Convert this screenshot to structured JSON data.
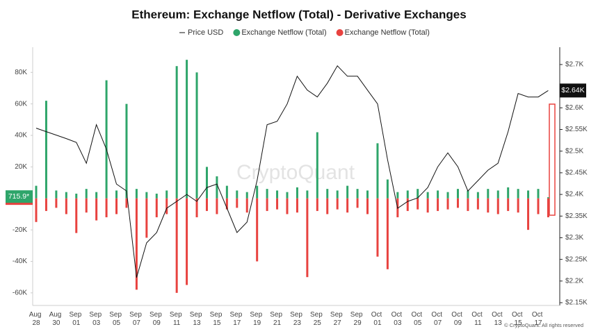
{
  "chart_data": {
    "type": "line-bar",
    "title": "Ethereum: Exchange Netflow (Total) - Derivative Exchanges",
    "watermark": "CryptoQuant",
    "credit": "© CryptoQuant. All rights reserved",
    "categories": [
      "Aug 28",
      null,
      "Aug 30",
      null,
      "Sep 01",
      null,
      "Sep 03",
      null,
      "Sep 05",
      null,
      "Sep 07",
      null,
      "Sep 09",
      null,
      "Sep 11",
      null,
      "Sep 13",
      null,
      "Sep 15",
      null,
      "Sep 17",
      null,
      "Sep 19",
      null,
      "Sep 21",
      null,
      "Sep 23",
      null,
      "Sep 25",
      null,
      "Sep 27",
      null,
      "Sep 29",
      null,
      "Oct 01",
      null,
      "Oct 03",
      null,
      "Oct 05",
      null,
      "Oct 07",
      null,
      "Oct 09",
      null,
      "Oct 11",
      null,
      "Oct 13",
      null,
      "Oct 15",
      null,
      "Oct 17",
      null
    ],
    "series": [
      {
        "name": "Price USD",
        "color": "#111111",
        "axis": "y2",
        "kind": "line",
        "values": [
          2553,
          2545,
          2537,
          2529,
          2520,
          2472,
          2561,
          2504,
          2424,
          2408,
          2208,
          2288,
          2312,
          2368,
          2384,
          2400,
          2384,
          2416,
          2424,
          2368,
          2312,
          2336,
          2432,
          2561,
          2569,
          2609,
          2673,
          2641,
          2625,
          2657,
          2697,
          2673,
          2673,
          2641,
          2609,
          2480,
          2368,
          2384,
          2392,
          2416,
          2464,
          2496,
          2464,
          2408,
          2432,
          2456,
          2472,
          2545,
          2633,
          2625,
          2625,
          2640
        ],
        "value_labels": [
          null,
          null,
          null,
          null,
          null,
          null,
          null,
          null,
          null,
          null,
          null,
          null,
          null,
          null,
          null,
          null,
          null,
          null,
          null,
          null,
          null,
          null,
          null,
          null,
          null,
          null,
          null,
          null,
          null,
          null,
          null,
          null,
          null,
          null,
          null,
          null,
          null,
          null,
          null,
          null,
          null,
          null,
          null,
          null,
          null,
          null,
          null,
          null,
          null,
          null,
          null,
          "$2.64K"
        ]
      },
      {
        "name": "Exchange Netflow (Total)",
        "color": "#2ea56a",
        "kind": "bar",
        "values": [
          8000,
          62000,
          5000,
          4000,
          3000,
          6000,
          4000,
          75000,
          5000,
          60000,
          6000,
          4000,
          3000,
          5000,
          84000,
          88000,
          80000,
          20000,
          14000,
          8000,
          5000,
          4000,
          8000,
          6000,
          5000,
          4000,
          7000,
          5000,
          42000,
          6000,
          5000,
          8000,
          6000,
          5000,
          35000,
          12000,
          4000,
          5000,
          6000,
          4000,
          5000,
          4000,
          6000,
          5000,
          4000,
          6000,
          5000,
          7000,
          6000,
          5000,
          6000,
          715.9
        ],
        "value_labels": [
          null,
          null,
          null,
          null,
          null,
          null,
          null,
          null,
          null,
          null,
          null,
          null,
          null,
          null,
          null,
          null,
          null,
          null,
          null,
          null,
          null,
          null,
          null,
          null,
          null,
          null,
          null,
          null,
          null,
          null,
          null,
          null,
          null,
          null,
          null,
          null,
          null,
          null,
          null,
          null,
          null,
          null,
          null,
          null,
          null,
          null,
          null,
          null,
          null,
          null,
          null,
          "715.9*"
        ]
      },
      {
        "name": "Exchange Netflow (Total)",
        "color": "#e8423f",
        "kind": "bar",
        "values": [
          -15000,
          -8000,
          -6000,
          -10000,
          -22000,
          -9000,
          -14000,
          -12000,
          -10000,
          -6000,
          -58000,
          -25000,
          -12000,
          -10000,
          -60000,
          -55000,
          -12000,
          -8000,
          -10000,
          -7000,
          -6000,
          -9000,
          -40000,
          -8000,
          -7000,
          -10000,
          -9000,
          -50000,
          -8000,
          -10000,
          -7000,
          -9000,
          -6000,
          -10000,
          -37000,
          -45000,
          -12000,
          -8000,
          -7000,
          -9000,
          -8000,
          -7000,
          -6000,
          -8000,
          -7000,
          -9000,
          -10000,
          -8000,
          -9000,
          -20000,
          -10000,
          -12000
        ]
      }
    ],
    "ylim": [
      -68000,
      96000
    ],
    "yticks": [
      {
        "value": -60000,
        "label": "-60K"
      },
      {
        "value": -40000,
        "label": "-40K"
      },
      {
        "value": -20000,
        "label": "-20K"
      },
      {
        "value": 20000,
        "label": "20K"
      },
      {
        "value": 40000,
        "label": "40K"
      },
      {
        "value": 60000,
        "label": "60K"
      },
      {
        "value": 80000,
        "label": "80K"
      }
    ],
    "y2lim": [
      2143.6,
      2740
    ],
    "y2ticks": [
      {
        "value": 2150,
        "label": "$2.15K"
      },
      {
        "value": 2200,
        "label": "$2.2K"
      },
      {
        "value": 2250,
        "label": "$2.25K"
      },
      {
        "value": 2300,
        "label": "$2.3K"
      },
      {
        "value": 2350,
        "label": "$2.35K"
      },
      {
        "value": 2400,
        "label": "$2.4K"
      },
      {
        "value": 2450,
        "label": "$2.45K"
      },
      {
        "value": 2500,
        "label": "$2.5K"
      },
      {
        "value": 2550,
        "label": "$2.55K"
      },
      {
        "value": 2600,
        "label": "$2.6K"
      },
      {
        "value": 2700,
        "label": "$2.7K"
      }
    ],
    "grid": false
  }
}
